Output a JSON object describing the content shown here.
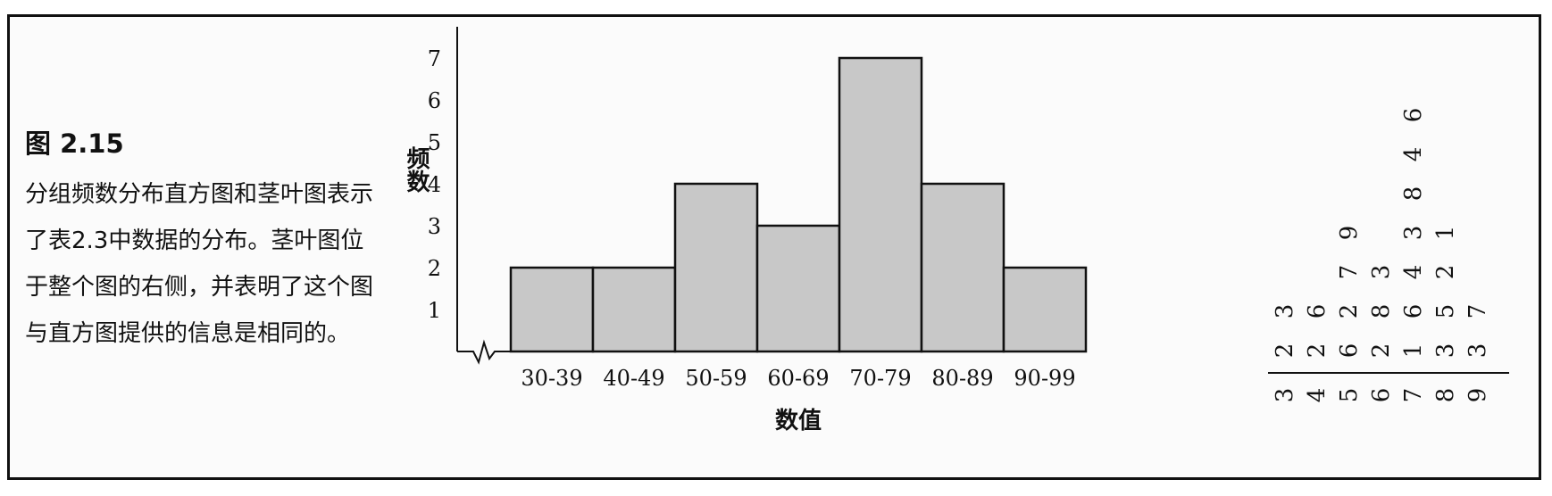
{
  "figure": {
    "label": "图 2.15",
    "caption": "分组频数分布直方图和茎叶图表示了表2.3中数据的分布。茎叶图位于整个图的右侧，并表明了这个图与直方图提供的信息是相同的。"
  },
  "chart_data": {
    "type": "bar",
    "categories": [
      "30-39",
      "40-49",
      "50-59",
      "60-69",
      "70-79",
      "80-89",
      "90-99"
    ],
    "values": [
      2,
      2,
      4,
      3,
      7,
      4,
      2
    ],
    "xlabel": "数值",
    "ylabel": "频数",
    "ylim": [
      0,
      7
    ],
    "yticks": [
      "1",
      "2",
      "3",
      "4",
      "5",
      "6",
      "7"
    ],
    "bar_color": "#c8c8c8",
    "grid": false
  },
  "stem_leaf": {
    "stems": [
      "3",
      "4",
      "5",
      "6",
      "7",
      "8",
      "9"
    ],
    "leaves": [
      [
        "2",
        "3"
      ],
      [
        "2",
        "6"
      ],
      [
        "6",
        "2",
        "7",
        "9"
      ],
      [
        "2",
        "8",
        "3"
      ],
      [
        "1",
        "6",
        "4",
        "3",
        "8",
        "4",
        "6"
      ],
      [
        "3",
        "5",
        "2",
        "1"
      ],
      [
        "3",
        "7"
      ]
    ]
  }
}
